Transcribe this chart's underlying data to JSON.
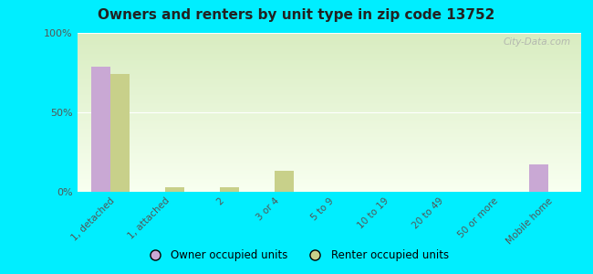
{
  "title": "Owners and renters by unit type in zip code 13752",
  "categories": [
    "1, detached",
    "1, attached",
    "2",
    "3 or 4",
    "5 to 9",
    "10 to 19",
    "20 to 49",
    "50 or more",
    "Mobile home"
  ],
  "owner_values": [
    79,
    0,
    0,
    0,
    0,
    0,
    0,
    0,
    17
  ],
  "renter_values": [
    74,
    3,
    3,
    13,
    0,
    0,
    0,
    0,
    0
  ],
  "owner_color": "#c9a8d4",
  "renter_color": "#c8d08a",
  "outer_bg": "#00eeff",
  "ylim": [
    0,
    100
  ],
  "yticks": [
    0,
    50,
    100
  ],
  "ytick_labels": [
    "0%",
    "50%",
    "100%"
  ],
  "bar_width": 0.35,
  "legend_owner": "Owner occupied units",
  "legend_renter": "Renter occupied units",
  "watermark": "City-Data.com",
  "grad_top_color": "#d8ecc0",
  "grad_bottom_color": "#f8fff0"
}
